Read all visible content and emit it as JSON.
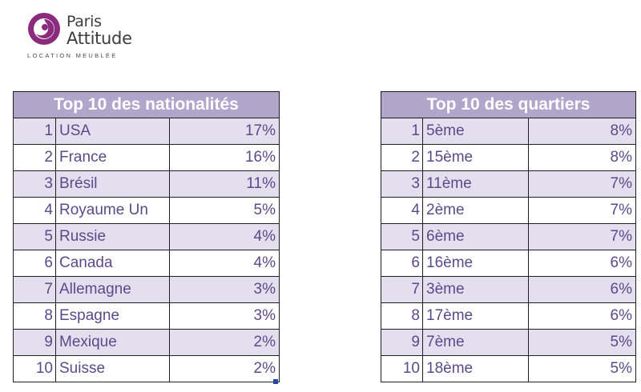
{
  "logo": {
    "name_line1": "Paris",
    "name_line2": "Attitude",
    "tagline": "LOCATION MEUBLÉE",
    "brand_color": "#8a2b7e"
  },
  "colors": {
    "header_bg": "#b1a5cb",
    "row_alt_bg": "#e4dfee",
    "text": "#5b4a8a"
  },
  "nationalities": {
    "title": "Top 10 des nationalités",
    "rows": [
      {
        "rank": "1",
        "name": "USA",
        "pct": "17%"
      },
      {
        "rank": "2",
        "name": "France",
        "pct": "16%"
      },
      {
        "rank": "3",
        "name": "Brésil",
        "pct": "11%"
      },
      {
        "rank": "4",
        "name": "Royaume Un",
        "pct": "5%"
      },
      {
        "rank": "5",
        "name": "Russie",
        "pct": "4%"
      },
      {
        "rank": "6",
        "name": "Canada",
        "pct": "4%"
      },
      {
        "rank": "7",
        "name": "Allemagne",
        "pct": "3%"
      },
      {
        "rank": "8",
        "name": "Espagne",
        "pct": "3%"
      },
      {
        "rank": "9",
        "name": "Mexique",
        "pct": "2%"
      },
      {
        "rank": "10",
        "name": "Suisse",
        "pct": "2%"
      }
    ]
  },
  "quartiers": {
    "title": "Top 10 des quartiers",
    "rows": [
      {
        "rank": "1",
        "name": "5ème",
        "pct": "8%"
      },
      {
        "rank": "2",
        "name": "15ème",
        "pct": "8%"
      },
      {
        "rank": "3",
        "name": "11ème",
        "pct": "7%"
      },
      {
        "rank": "4",
        "name": "2ème",
        "pct": "7%"
      },
      {
        "rank": "5",
        "name": "6ème",
        "pct": "7%"
      },
      {
        "rank": "6",
        "name": "16ème",
        "pct": "6%"
      },
      {
        "rank": "7",
        "name": "3ème",
        "pct": "6%"
      },
      {
        "rank": "8",
        "name": "17ème",
        "pct": "6%"
      },
      {
        "rank": "9",
        "name": "7ème",
        "pct": "5%"
      },
      {
        "rank": "10",
        "name": "18ème",
        "pct": "5%"
      }
    ]
  }
}
